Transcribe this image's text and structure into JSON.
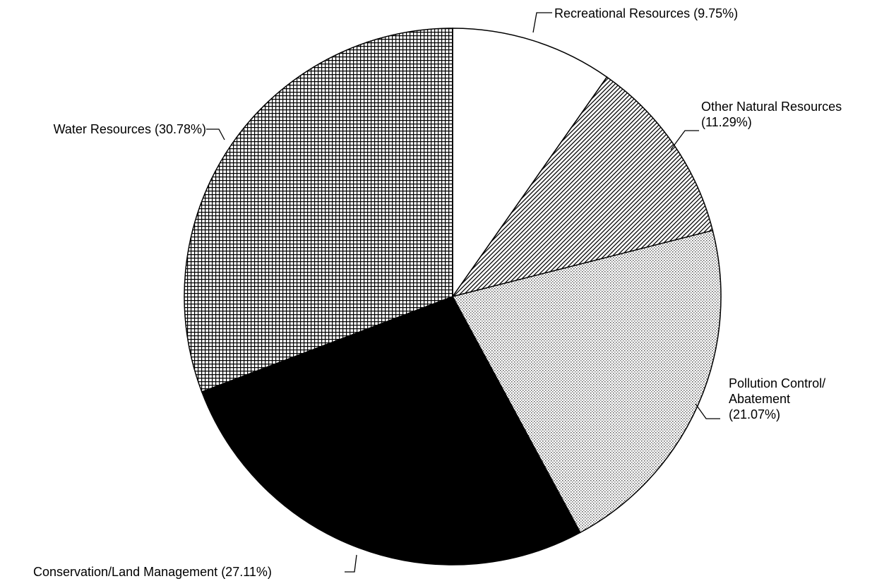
{
  "chart_data": {
    "type": "pie",
    "categories": [
      "Recreational Resources",
      "Other Natural Resources",
      "Pollution Control/ Abatement",
      "Conservation/Land Management",
      "Water Resources"
    ],
    "values": [
      9.75,
      11.29,
      21.07,
      27.11,
      30.78
    ],
    "value_labels": [
      "(9.75%)",
      "(11.29%)",
      "(21.07%)",
      "(27.11%)",
      "(30.78%)"
    ],
    "colors": [
      "#ffffff",
      "#9a9a9a",
      "#d4d4d4",
      "#000000",
      "#8c8c8c"
    ]
  }
}
